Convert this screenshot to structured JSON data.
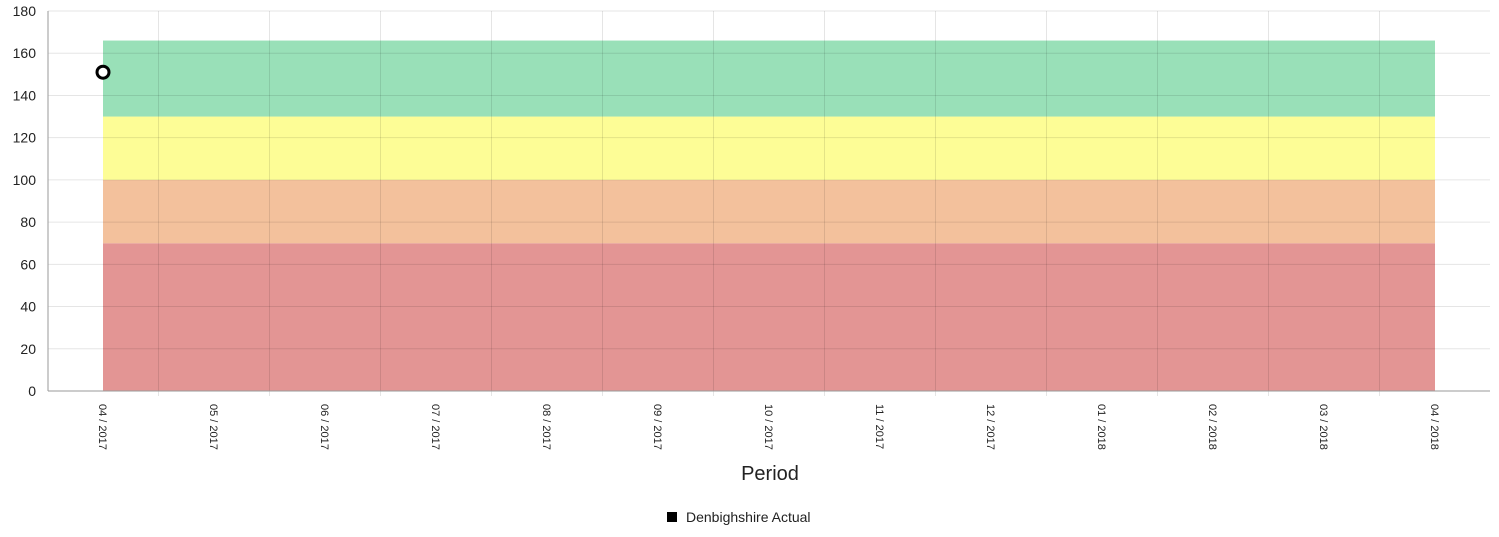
{
  "chart_data": {
    "type": "scatter",
    "title": "",
    "xlabel": "Period",
    "ylabel": "",
    "ylim": [
      0,
      180
    ],
    "yticks": [
      0,
      20,
      40,
      60,
      80,
      100,
      120,
      140,
      160,
      180
    ],
    "categories": [
      "04 / 2017",
      "05 / 2017",
      "06 / 2017",
      "07 / 2017",
      "08 / 2017",
      "09 / 2017",
      "10 / 2017",
      "11 / 2017",
      "12 / 2017",
      "01 / 2018",
      "02 / 2018",
      "03 / 2018",
      "04 / 2018"
    ],
    "bands": [
      {
        "from": 0,
        "to": 70,
        "color": "#e39594"
      },
      {
        "from": 70,
        "to": 100,
        "color": "#f3c19c"
      },
      {
        "from": 100,
        "to": 130,
        "color": "#fdfd96"
      },
      {
        "from": 130,
        "to": 166,
        "color": "#99e0b8"
      }
    ],
    "series": [
      {
        "name": "Denbighshire Actual",
        "color": "#000000",
        "points": [
          {
            "x": "04 / 2017",
            "y": 151
          }
        ]
      }
    ],
    "grid": true,
    "legend_position": "bottom"
  }
}
